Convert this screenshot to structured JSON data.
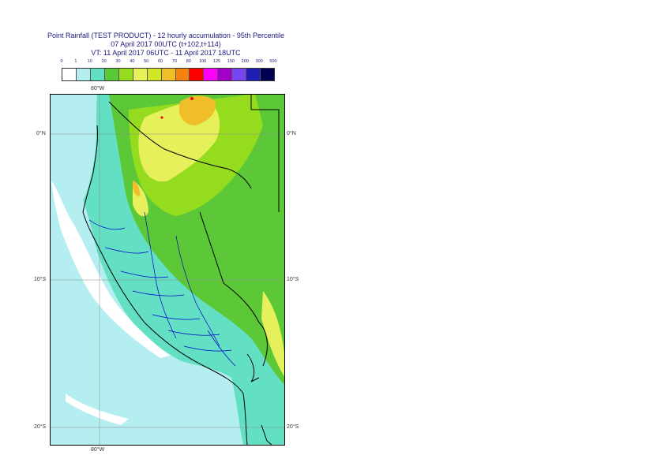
{
  "title": {
    "line1": "Point Rainfall (TEST PRODUCT) - 12 hourly accumulation - 95th Percentile",
    "line2": "07 April 2017 00UTC (t+102,t+114)",
    "line3": "VT: 11 April 2017 06UTC - 11 April 2017 18UTC"
  },
  "legend": {
    "thresholds": [
      "0",
      "1",
      "10",
      "20",
      "30",
      "40",
      "50",
      "60",
      "70",
      "80",
      "100",
      "125",
      "150",
      "200",
      "300",
      "500"
    ],
    "colors": [
      "#ffffff",
      "#b4eef0",
      "#63e0c4",
      "#5cc838",
      "#96dc1e",
      "#e6f05a",
      "#d2e628",
      "#f0be28",
      "#f5820a",
      "#ff0000",
      "#ff00ff",
      "#a000c8",
      "#7846f0",
      "#1e1eb4",
      "#000050"
    ]
  },
  "map": {
    "sea_color": "#b4eef0",
    "land_light": "#63e0c4",
    "land_mid": "#5cc838",
    "land_green2": "#96dc1e",
    "land_yellow": "#e6f05a",
    "land_orange": "#f0be28",
    "accent_red": "#ff0000",
    "border_country": "#000000",
    "border_region": "#0000c8",
    "labels": {
      "lon_top": "80°W",
      "lon_bottom": "80°W",
      "lat_0_left": "0°N",
      "lat_0_right": "0°N",
      "lat_10_left": "10°S",
      "lat_10_right": "10°S",
      "lat_20_left": "20°S",
      "lat_20_right": "20°S"
    }
  }
}
